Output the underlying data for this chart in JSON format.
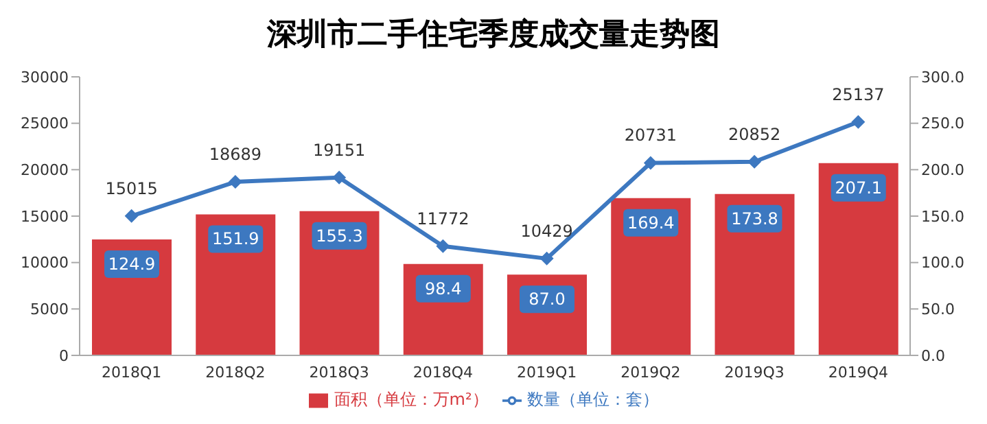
{
  "chart_data": {
    "type": "bar",
    "title": "深圳市二手住宅季度成交量走势图",
    "categories": [
      "2018Q1",
      "2018Q2",
      "2018Q3",
      "2018Q4",
      "2019Q1",
      "2019Q2",
      "2019Q3",
      "2019Q4"
    ],
    "series": [
      {
        "name": "面积（单位：万m²）",
        "axis": "y2",
        "color": "#d63a3f",
        "values": [
          124.9,
          151.9,
          155.3,
          98.4,
          87.0,
          169.4,
          173.8,
          207.1
        ],
        "value_labels": [
          "124.9",
          "151.9",
          "155.3",
          "98.4",
          "87.0",
          "169.4",
          "173.8",
          "207.1"
        ]
      },
      {
        "name": "数量（单位：套）",
        "type": "line",
        "axis": "y",
        "color": "#3d78c0",
        "values": [
          15015,
          18689,
          19151,
          11772,
          10429,
          20731,
          20852,
          25137
        ]
      }
    ],
    "ylim": [
      0,
      30000
    ],
    "yticks": [
      0,
      5000,
      10000,
      15000,
      20000,
      25000,
      30000
    ],
    "y2lim": [
      0,
      300
    ],
    "y2ticks": [
      {
        "value": 0,
        "label": "0.0"
      },
      {
        "value": 50,
        "label": "50.0"
      },
      {
        "value": 100,
        "label": "100.0"
      },
      {
        "value": 150,
        "label": "150.0"
      },
      {
        "value": 200,
        "label": "200.0"
      },
      {
        "value": 250,
        "label": "250.0"
      },
      {
        "value": 300,
        "label": "300.0"
      }
    ],
    "data_labels": true,
    "grid": false,
    "legend": "bottom",
    "marker": "diamond",
    "line_style": "solid"
  }
}
